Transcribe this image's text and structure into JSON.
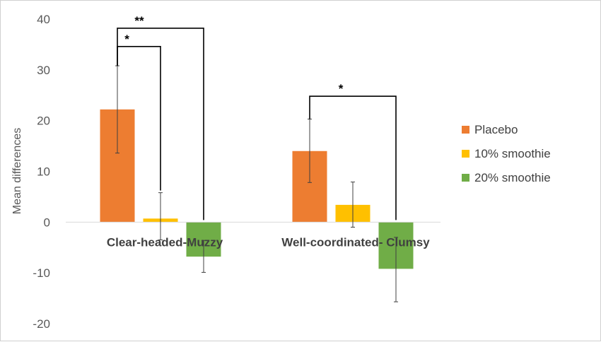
{
  "chart_data": {
    "type": "bar",
    "title": "",
    "xlabel": "",
    "ylabel": "Mean differences",
    "ylim": [
      -20,
      40
    ],
    "yticks": [
      40,
      30,
      20,
      10,
      0,
      -10,
      -20
    ],
    "grid": false,
    "legend_position": "right",
    "categories": [
      "Clear-headed-Muzzy",
      "Well-coordinated- Clumsy"
    ],
    "series": [
      {
        "name": "Placebo",
        "color": "#ED7D31",
        "values": [
          22.2,
          14.0
        ],
        "err_low": [
          13.6,
          7.8
        ],
        "err_high": [
          30.8,
          20.3
        ]
      },
      {
        "name": "10% smoothie",
        "color": "#FFC000",
        "values": [
          0.7,
          3.4
        ],
        "err_low": [
          -3.5,
          -1.0
        ],
        "err_high": [
          5.8,
          7.9
        ]
      },
      {
        "name": "20% smoothie",
        "color": "#70AD47",
        "values": [
          -6.8,
          -9.2
        ],
        "err_low": [
          -9.9,
          -15.7
        ],
        "err_high": [
          -3.6,
          -3.0
        ]
      }
    ],
    "annotations": [
      {
        "label": "**",
        "category": 0,
        "from_series": 0,
        "to_series": 2,
        "y": 38.2
      },
      {
        "label": "*",
        "category": 0,
        "from_series": 0,
        "to_series": 1,
        "y": 34.6
      },
      {
        "label": "*",
        "category": 1,
        "from_series": 0,
        "to_series": 2,
        "y": 24.8
      }
    ]
  }
}
